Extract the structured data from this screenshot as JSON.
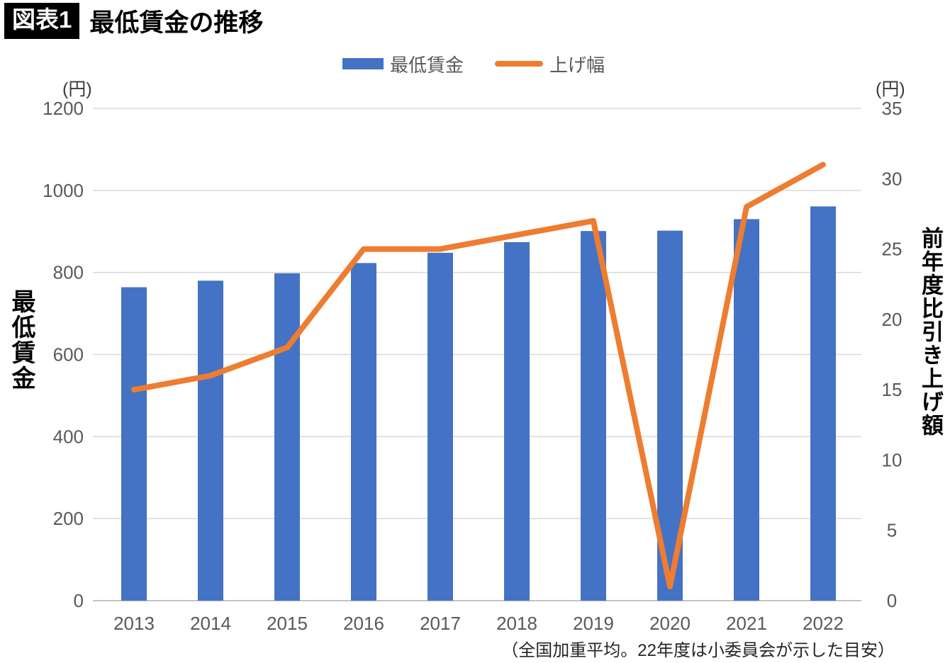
{
  "header": {
    "tag": "図表1",
    "title": "最低賃金の推移"
  },
  "footnote": "（全国加重平均。22年度は小委員会が示した目安）",
  "colors": {
    "bar": "#4472C4",
    "line": "#ED7D31",
    "grid": "#D9D9D9",
    "baseline": "#C3C3C3",
    "tick_text": "#595959"
  },
  "chart_data": {
    "type": "combo",
    "title": "最低賃金の推移",
    "categories": [
      "2013",
      "2014",
      "2015",
      "2016",
      "2017",
      "2018",
      "2019",
      "2020",
      "2021",
      "2022"
    ],
    "series": [
      {
        "name": "最低賃金",
        "type": "bar",
        "axis": "left",
        "color": "#4472C4",
        "values": [
          764,
          780,
          798,
          823,
          848,
          874,
          901,
          902,
          930,
          961
        ]
      },
      {
        "name": "上げ幅",
        "type": "line",
        "axis": "right",
        "color": "#ED7D31",
        "values": [
          15,
          16,
          18,
          25,
          25,
          26,
          27,
          1,
          28,
          31
        ]
      }
    ],
    "left_axis": {
      "unit": "(円)",
      "title": "最低賃金",
      "min": 0,
      "max": 1200,
      "ticks": [
        0,
        200,
        400,
        600,
        800,
        1000,
        1200
      ]
    },
    "right_axis": {
      "unit": "(円)",
      "title": "前年度比引き上げ額",
      "min": 0,
      "max": 35,
      "ticks": [
        0,
        5,
        10,
        15,
        20,
        25,
        30,
        35
      ]
    },
    "grid": true,
    "legend_position": "top"
  }
}
